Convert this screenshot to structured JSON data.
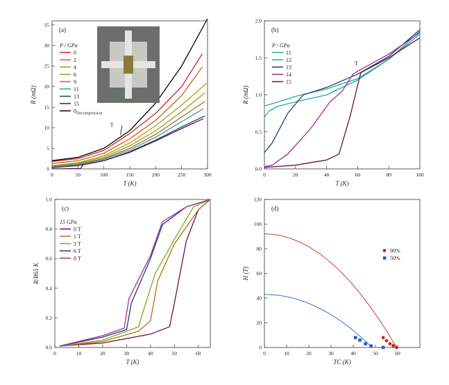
{
  "colors": {
    "red": "#cc2222",
    "orange": "#c0651c",
    "yellow": "#b8960e",
    "green": "#7faa1c",
    "teal": "#23a6a0",
    "navy": "#1a3d78",
    "purple": "#a626a0",
    "maroon": "#6a1034",
    "black": "#000000",
    "blue": "#2a5ac8"
  },
  "chart_data": [
    {
      "type": "line",
      "panel_label": "(a)",
      "xlabel": "T (K)",
      "ylabel": "R (mΩ)",
      "xlim": [
        0,
        300
      ],
      "ylim": [
        0,
        36
      ],
      "xticks": [
        "0",
        "50",
        "100",
        "150",
        "200",
        "250",
        "300"
      ],
      "yticks": [
        "0",
        "5",
        "10",
        "15",
        "20",
        "25",
        "30",
        "35"
      ],
      "legend_title": "P / GPa",
      "annotation": "T",
      "inset": "sample photo on diamond anvil with four leads",
      "series": [
        {
          "name": "0",
          "color": "red",
          "x": [
            0,
            50,
            100,
            150,
            200,
            250,
            290
          ],
          "y": [
            1.8,
            2.5,
            4.5,
            8.6,
            13.5,
            20,
            28
          ]
        },
        {
          "name": "2",
          "color": "orange",
          "x": [
            0,
            50,
            100,
            150,
            200,
            250,
            290
          ],
          "y": [
            1.3,
            2,
            3.8,
            7.3,
            11.8,
            17.8,
            24.8
          ]
        },
        {
          "name": "4",
          "color": "yellow",
          "x": [
            0,
            50,
            100,
            150,
            200,
            250,
            298
          ],
          "y": [
            0.8,
            1.5,
            3.2,
            6.3,
            10.5,
            15.5,
            20.8
          ]
        },
        {
          "name": "6",
          "color": "green",
          "x": [
            0,
            50,
            100,
            150,
            200,
            250,
            295
          ],
          "y": [
            0.6,
            1.3,
            2.8,
            5.6,
            9.3,
            13.9,
            18.5
          ]
        },
        {
          "name": "9",
          "color": "orange",
          "x": [
            0,
            50,
            100,
            150,
            200,
            250,
            295
          ],
          "y": [
            0.5,
            1.1,
            2.5,
            5,
            8.4,
            12.6,
            16.4
          ]
        },
        {
          "name": "11",
          "color": "teal",
          "x": [
            0,
            50,
            100,
            150,
            200,
            250,
            292
          ],
          "y": [
            0.4,
            1,
            2.3,
            4.6,
            7.7,
            11.5,
            14.6
          ]
        },
        {
          "name": "13",
          "color": "navy",
          "x": [
            0,
            50,
            100,
            150,
            200,
            250,
            295
          ],
          "y": [
            0.3,
            0.8,
            2,
            4.2,
            7,
            10.2,
            12.9
          ]
        },
        {
          "name": "15",
          "color": "maroon",
          "x": [
            0,
            55,
            60,
            100,
            150,
            200,
            250,
            292
          ],
          "y": [
            0,
            0.1,
            1,
            2,
            4,
            6.8,
            9.8,
            12.2
          ]
        },
        {
          "name": "0",
          "name_sub": "Decompression",
          "color": "black",
          "x": [
            0,
            50,
            100,
            150,
            200,
            250,
            300
          ],
          "y": [
            2,
            2.8,
            5,
            9.3,
            16,
            25,
            36.5
          ]
        }
      ]
    },
    {
      "type": "line",
      "panel_label": "(b)",
      "xlabel": "T (K)",
      "ylabel": "R (mΩ)",
      "xlim": [
        0,
        100
      ],
      "ylim": [
        0,
        2
      ],
      "xticks": [
        "0",
        "20",
        "40",
        "60",
        "80",
        "100"
      ],
      "yticks": [
        "0.0",
        "0.5",
        "1.0",
        "1.5",
        "2.0"
      ],
      "legend_title": "P / GPa",
      "annotation": "T",
      "series": [
        {
          "name": "11",
          "color": "teal",
          "x": [
            0,
            5,
            20,
            40,
            60,
            80,
            100
          ],
          "y": [
            0.85,
            0.88,
            0.98,
            1.08,
            1.22,
            1.48,
            1.86
          ]
        },
        {
          "name": "12",
          "color": "teal",
          "x": [
            0,
            3,
            8,
            15,
            40,
            60,
            80,
            100
          ],
          "y": [
            0.7,
            0.78,
            0.84,
            0.88,
            1.0,
            1.2,
            1.48,
            1.82
          ]
        },
        {
          "name": "13",
          "color": "navy",
          "x": [
            0,
            5,
            15,
            25,
            40,
            60,
            80,
            100
          ],
          "y": [
            0.22,
            0.35,
            0.75,
            1.0,
            1.1,
            1.28,
            1.52,
            1.88
          ]
        },
        {
          "name": "14",
          "color": "purple",
          "x": [
            0,
            5,
            15,
            30,
            42,
            50,
            57,
            60,
            80,
            100
          ],
          "y": [
            0.03,
            0.05,
            0.2,
            0.55,
            0.9,
            1.05,
            1.28,
            1.32,
            1.55,
            1.84
          ]
        },
        {
          "name": "15",
          "color": "maroon",
          "x": [
            0,
            20,
            40,
            48,
            55,
            62,
            80,
            100
          ],
          "y": [
            0.02,
            0.05,
            0.12,
            0.2,
            0.7,
            1.3,
            1.5,
            1.77
          ]
        }
      ]
    },
    {
      "type": "line",
      "panel_label": "(c)",
      "xlabel": "T (K)",
      "ylabel": "R/R65 K",
      "xlim": [
        0,
        65
      ],
      "ylim": [
        0,
        1
      ],
      "xticks": [
        "0",
        "10",
        "20",
        "30",
        "40",
        "50",
        "60"
      ],
      "yticks": [
        "0.0",
        "0.2",
        "0.4",
        "0.6",
        "0.8",
        "1.0"
      ],
      "legend_title": "15 GPa",
      "series": [
        {
          "name": "0 T",
          "color": "maroon",
          "x": [
            2,
            20,
            40,
            48,
            50,
            55,
            60,
            65
          ],
          "y": [
            0.01,
            0.03,
            0.09,
            0.14,
            0.3,
            0.72,
            0.93,
            1
          ]
        },
        {
          "name": "1 T",
          "color": "orange",
          "x": [
            2,
            20,
            35,
            40,
            43,
            50,
            60,
            65
          ],
          "y": [
            0.01,
            0.04,
            0.11,
            0.18,
            0.45,
            0.7,
            0.93,
            1
          ]
        },
        {
          "name": "3 T",
          "color": "green",
          "x": [
            2,
            20,
            35,
            38,
            42,
            50,
            58,
            65
          ],
          "y": [
            0.01,
            0.05,
            0.14,
            0.3,
            0.5,
            0.73,
            0.95,
            1
          ]
        },
        {
          "name": "6 T",
          "color": "navy",
          "x": [
            2,
            20,
            30,
            32,
            40,
            45,
            55,
            65
          ],
          "y": [
            0.01,
            0.07,
            0.12,
            0.3,
            0.6,
            0.83,
            0.95,
            1
          ]
        },
        {
          "name": "8 T",
          "color": "purple",
          "x": [
            2,
            20,
            29,
            31,
            40,
            45,
            55,
            65
          ],
          "y": [
            0.01,
            0.08,
            0.13,
            0.33,
            0.62,
            0.85,
            0.95,
            1
          ]
        }
      ]
    },
    {
      "type": "scatter",
      "panel_label": "(d)",
      "xlabel": "TC (K)",
      "ylabel": "H (T)",
      "xlim": [
        0,
        70
      ],
      "ylim": [
        0,
        120
      ],
      "xticks": [
        "0",
        "10",
        "20",
        "30",
        "40",
        "50",
        "60"
      ],
      "yticks": [
        "0",
        "20",
        "40",
        "60",
        "80",
        "100",
        "120"
      ],
      "series": [
        {
          "name": "90%",
          "color": "red",
          "marker": "circle",
          "x": [
            53.5,
            55,
            56.5,
            58,
            59.5
          ],
          "y": [
            8,
            5.5,
            3,
            1.5,
            0
          ],
          "fit": {
            "Tc0": 59.5,
            "H0": 92
          }
        },
        {
          "name": "50%",
          "color": "blue",
          "marker": "square",
          "x": [
            41,
            43,
            45.5,
            48,
            53.5
          ],
          "y": [
            8,
            6,
            3,
            1.2,
            0
          ],
          "fit": {
            "Tc0": 48.5,
            "H0": 43
          }
        }
      ]
    }
  ]
}
